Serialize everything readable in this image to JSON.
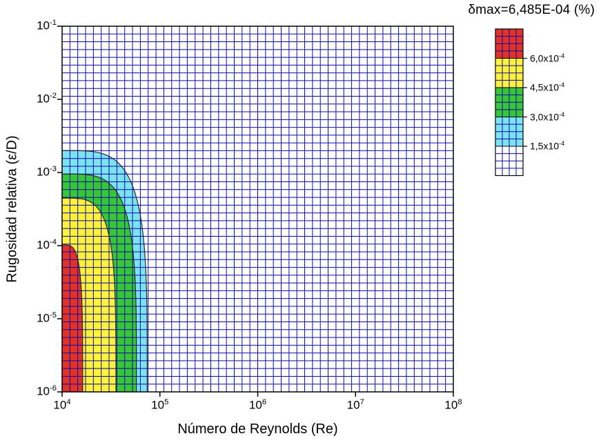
{
  "chart_data": {
    "type": "contour",
    "title": "δmax=6,485E-04 (%)",
    "xlabel": "Número de Reynolds (Re)",
    "ylabel": "Rugosidad relativa (ε/D)",
    "x_scale": "log",
    "y_scale": "log",
    "xlim": [
      10000,
      100000000
    ],
    "ylim": [
      1e-06,
      0.1
    ],
    "x_range_exponents": [
      4,
      8
    ],
    "y_range_exponents": [
      -6,
      -1
    ],
    "x_tick_exponents": [
      4,
      5,
      6,
      7,
      8
    ],
    "y_tick_exponents": [
      -1,
      -2,
      -3,
      -4,
      -5,
      -6
    ],
    "grid": {
      "mesh_cols": 50,
      "mesh_rows": 47,
      "line_color": "#0A0AA8"
    },
    "axis_color": "#000000",
    "contour_line_color": "#26262e",
    "shape_exponent": 4,
    "background_level": {
      "range_max": 0.00015,
      "color": "#FFFFFF"
    },
    "levels": [
      {
        "min_value": 0.00015,
        "color": "#7CE3F0",
        "left_edge_eps_over_D": 0.002,
        "bottom_edge_Re": 74000,
        "a_decades": 0.87,
        "b_decades": 3.3
      },
      {
        "min_value": 0.0003,
        "color": "#38C538",
        "left_edge_eps_over_D": 0.00095,
        "bottom_edge_Re": 57500,
        "a_decades": 0.76,
        "b_decades": 2.98
      },
      {
        "min_value": 0.00045,
        "color": "#FFF23A",
        "left_edge_eps_over_D": 0.00045,
        "bottom_edge_Re": 35000,
        "a_decades": 0.55,
        "b_decades": 2.65
      },
      {
        "min_value": 0.0006,
        "color": "#E03227",
        "left_edge_eps_over_D": 0.0001,
        "bottom_edge_Re": 16000,
        "a_decades": 0.21,
        "b_decades": 2.01
      }
    ],
    "colorbar": {
      "colors_top_to_bottom": [
        "#E03227",
        "#FFF23A",
        "#38C538",
        "#7CE3F0",
        "#FFFFFF"
      ],
      "tick_labels": [
        {
          "mantissa": "6,0",
          "exp": -4
        },
        {
          "mantissa": "4,5",
          "exp": -4
        },
        {
          "mantissa": "3,0",
          "exp": -4
        },
        {
          "mantissa": "1,5",
          "exp": -4
        }
      ]
    }
  }
}
